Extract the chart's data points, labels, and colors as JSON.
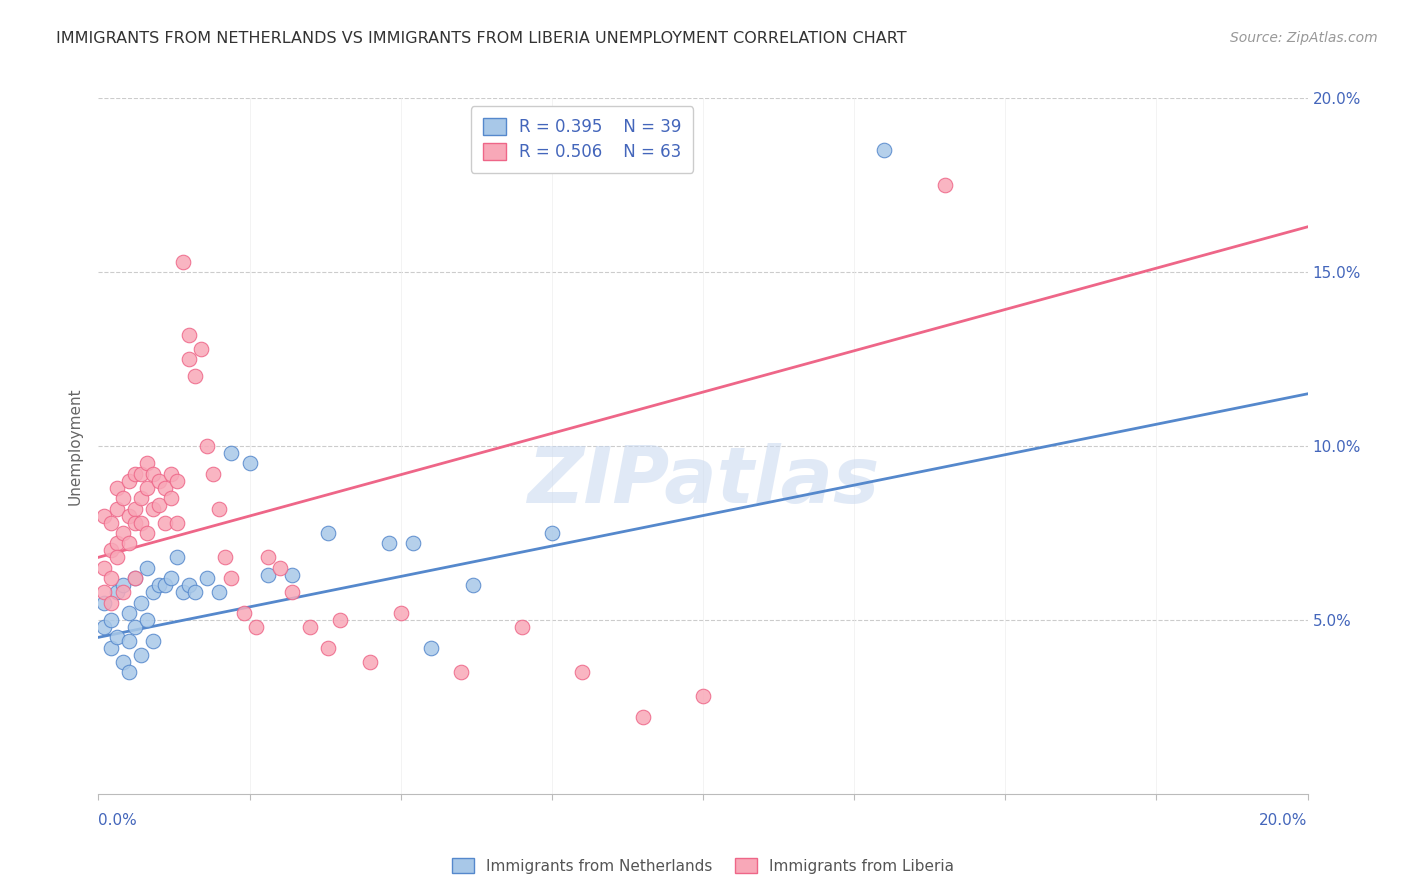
{
  "title": "IMMIGRANTS FROM NETHERLANDS VS IMMIGRANTS FROM LIBERIA UNEMPLOYMENT CORRELATION CHART",
  "source": "Source: ZipAtlas.com",
  "ylabel": "Unemployment",
  "xlim": [
    0,
    0.2
  ],
  "ylim": [
    0,
    0.2
  ],
  "color_netherlands": "#a8c8e8",
  "color_liberia": "#f8a8b8",
  "color_netherlands_line": "#5588cc",
  "color_liberia_line": "#ee6688",
  "color_text_blue": "#4466bb",
  "watermark": "ZIPatlas",
  "nl_line_x0": 0.0,
  "nl_line_y0": 0.045,
  "nl_line_x1": 0.2,
  "nl_line_y1": 0.115,
  "lb_line_x0": 0.0,
  "lb_line_y0": 0.068,
  "lb_line_x1": 0.2,
  "lb_line_y1": 0.163,
  "netherlands_x": [
    0.001,
    0.001,
    0.002,
    0.002,
    0.003,
    0.003,
    0.004,
    0.004,
    0.005,
    0.005,
    0.005,
    0.006,
    0.006,
    0.007,
    0.007,
    0.008,
    0.008,
    0.009,
    0.009,
    0.01,
    0.011,
    0.012,
    0.013,
    0.014,
    0.015,
    0.016,
    0.018,
    0.02,
    0.022,
    0.025,
    0.028,
    0.032,
    0.038,
    0.048,
    0.055,
    0.062,
    0.075,
    0.052,
    0.13
  ],
  "netherlands_y": [
    0.048,
    0.055,
    0.05,
    0.042,
    0.058,
    0.045,
    0.06,
    0.038,
    0.052,
    0.044,
    0.035,
    0.062,
    0.048,
    0.055,
    0.04,
    0.065,
    0.05,
    0.058,
    0.044,
    0.06,
    0.06,
    0.062,
    0.068,
    0.058,
    0.06,
    0.058,
    0.062,
    0.058,
    0.098,
    0.095,
    0.063,
    0.063,
    0.075,
    0.072,
    0.042,
    0.06,
    0.075,
    0.072,
    0.185
  ],
  "liberia_x": [
    0.001,
    0.001,
    0.001,
    0.002,
    0.002,
    0.002,
    0.002,
    0.003,
    0.003,
    0.003,
    0.003,
    0.004,
    0.004,
    0.004,
    0.005,
    0.005,
    0.005,
    0.006,
    0.006,
    0.006,
    0.006,
    0.007,
    0.007,
    0.007,
    0.008,
    0.008,
    0.008,
    0.009,
    0.009,
    0.01,
    0.01,
    0.011,
    0.011,
    0.012,
    0.012,
    0.013,
    0.013,
    0.014,
    0.015,
    0.015,
    0.016,
    0.017,
    0.018,
    0.019,
    0.02,
    0.021,
    0.022,
    0.024,
    0.026,
    0.028,
    0.03,
    0.032,
    0.035,
    0.038,
    0.04,
    0.045,
    0.05,
    0.06,
    0.07,
    0.08,
    0.09,
    0.1,
    0.14
  ],
  "liberia_y": [
    0.058,
    0.065,
    0.08,
    0.07,
    0.078,
    0.062,
    0.055,
    0.072,
    0.082,
    0.068,
    0.088,
    0.075,
    0.085,
    0.058,
    0.08,
    0.09,
    0.072,
    0.082,
    0.092,
    0.078,
    0.062,
    0.085,
    0.092,
    0.078,
    0.088,
    0.075,
    0.095,
    0.082,
    0.092,
    0.09,
    0.083,
    0.088,
    0.078,
    0.085,
    0.092,
    0.09,
    0.078,
    0.153,
    0.132,
    0.125,
    0.12,
    0.128,
    0.1,
    0.092,
    0.082,
    0.068,
    0.062,
    0.052,
    0.048,
    0.068,
    0.065,
    0.058,
    0.048,
    0.042,
    0.05,
    0.038,
    0.052,
    0.035,
    0.048,
    0.035,
    0.022,
    0.028,
    0.175
  ]
}
